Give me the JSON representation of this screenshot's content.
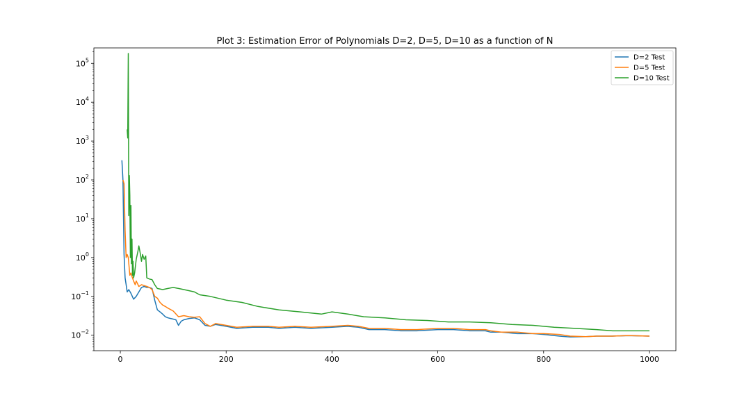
{
  "chart_data": {
    "type": "line",
    "title": "Plot 3: Estimation Error of Polynomials D=2, D=5, D=10 as a function of N",
    "xlabel": "",
    "ylabel": "",
    "xlim": [
      -50,
      1050
    ],
    "ylim": [
      0.004,
      250000
    ],
    "yscale": "log",
    "grid": false,
    "legend_position": "top-right",
    "x_ticks": [
      {
        "value": 0,
        "label": "0"
      },
      {
        "value": 200,
        "label": "200"
      },
      {
        "value": 400,
        "label": "400"
      },
      {
        "value": 600,
        "label": "600"
      },
      {
        "value": 800,
        "label": "800"
      },
      {
        "value": 1000,
        "label": "1000"
      }
    ],
    "y_ticks": [
      {
        "value": 0.01,
        "base": "10",
        "exp": "−2"
      },
      {
        "value": 0.1,
        "base": "10",
        "exp": "−1"
      },
      {
        "value": 1,
        "base": "10",
        "exp": "0"
      },
      {
        "value": 10,
        "base": "10",
        "exp": "1"
      },
      {
        "value": 100,
        "base": "10",
        "exp": "2"
      },
      {
        "value": 1000,
        "base": "10",
        "exp": "3"
      },
      {
        "value": 10000,
        "base": "10",
        "exp": "4"
      },
      {
        "value": 100000,
        "base": "10",
        "exp": "5"
      }
    ],
    "series": [
      {
        "name": "D=2 Test",
        "color": "#1f77b4",
        "x": [
          3,
          5,
          7,
          9,
          11,
          13,
          16,
          20,
          25,
          30,
          35,
          40,
          45,
          50,
          55,
          60,
          65,
          70,
          75,
          80,
          85,
          90,
          95,
          100,
          105,
          110,
          115,
          120,
          130,
          140,
          150,
          160,
          170,
          180,
          200,
          220,
          250,
          280,
          300,
          330,
          360,
          400,
          430,
          450,
          470,
          500,
          530,
          560,
          600,
          630,
          660,
          690,
          700,
          720,
          750,
          780,
          800,
          830,
          850,
          880,
          900,
          930,
          960,
          1000
        ],
        "y": [
          320,
          100,
          1.2,
          0.3,
          0.2,
          0.13,
          0.15,
          0.12,
          0.085,
          0.1,
          0.13,
          0.17,
          0.18,
          0.17,
          0.17,
          0.16,
          0.08,
          0.045,
          0.04,
          0.035,
          0.03,
          0.028,
          0.027,
          0.026,
          0.025,
          0.018,
          0.023,
          0.025,
          0.027,
          0.028,
          0.025,
          0.018,
          0.017,
          0.019,
          0.017,
          0.015,
          0.016,
          0.016,
          0.015,
          0.016,
          0.015,
          0.016,
          0.017,
          0.016,
          0.014,
          0.014,
          0.013,
          0.013,
          0.014,
          0.014,
          0.013,
          0.013,
          0.012,
          0.012,
          0.011,
          0.011,
          0.0105,
          0.0095,
          0.009,
          0.0092,
          0.0095,
          0.0095,
          0.0098,
          0.0095
        ]
      },
      {
        "name": "D=5 Test",
        "color": "#ff7f0e",
        "x": [
          5,
          7,
          9,
          11,
          13,
          15,
          18,
          20,
          23,
          25,
          28,
          30,
          35,
          40,
          45,
          50,
          55,
          60,
          65,
          70,
          75,
          80,
          85,
          90,
          100,
          110,
          120,
          130,
          140,
          150,
          160,
          170,
          180,
          200,
          220,
          250,
          280,
          300,
          330,
          360,
          400,
          430,
          450,
          470,
          500,
          530,
          560,
          600,
          630,
          660,
          690,
          700,
          720,
          750,
          780,
          800,
          830,
          850,
          880,
          900,
          930,
          960,
          1000
        ],
        "y": [
          100,
          80,
          5,
          1.0,
          1.2,
          1.0,
          0.35,
          0.4,
          0.3,
          0.25,
          0.2,
          0.25,
          0.18,
          0.2,
          0.19,
          0.18,
          0.17,
          0.15,
          0.1,
          0.09,
          0.07,
          0.06,
          0.055,
          0.05,
          0.042,
          0.03,
          0.032,
          0.03,
          0.029,
          0.03,
          0.02,
          0.017,
          0.02,
          0.018,
          0.016,
          0.017,
          0.017,
          0.016,
          0.017,
          0.016,
          0.017,
          0.018,
          0.017,
          0.015,
          0.015,
          0.014,
          0.014,
          0.015,
          0.015,
          0.014,
          0.014,
          0.013,
          0.012,
          0.012,
          0.011,
          0.011,
          0.0105,
          0.0095,
          0.0092,
          0.0095,
          0.0095,
          0.0098,
          0.0095
        ]
      },
      {
        "name": "D=10 Test",
        "color": "#2ca02c",
        "x": [
          13,
          14,
          15,
          16,
          17,
          18,
          19,
          20,
          21,
          22,
          23,
          24,
          25,
          27,
          30,
          33,
          35,
          38,
          40,
          42,
          45,
          48,
          50,
          55,
          60,
          65,
          70,
          80,
          90,
          100,
          110,
          120,
          130,
          140,
          150,
          170,
          200,
          230,
          260,
          300,
          340,
          380,
          400,
          430,
          460,
          500,
          540,
          580,
          620,
          660,
          700,
          740,
          780,
          820,
          860,
          900,
          930,
          960,
          1000
        ],
        "y": [
          2000,
          1200,
          180000,
          12,
          130,
          40,
          1.0,
          22,
          0.7,
          3,
          0.35,
          0.8,
          0.3,
          0.4,
          0.9,
          1.4,
          2.0,
          1.2,
          0.8,
          1.2,
          0.9,
          1.1,
          0.3,
          0.28,
          0.27,
          0.2,
          0.16,
          0.15,
          0.16,
          0.17,
          0.16,
          0.15,
          0.14,
          0.13,
          0.11,
          0.1,
          0.08,
          0.07,
          0.055,
          0.045,
          0.04,
          0.035,
          0.04,
          0.035,
          0.03,
          0.028,
          0.025,
          0.024,
          0.022,
          0.022,
          0.021,
          0.019,
          0.018,
          0.016,
          0.015,
          0.014,
          0.013,
          0.013,
          0.013
        ]
      }
    ]
  }
}
